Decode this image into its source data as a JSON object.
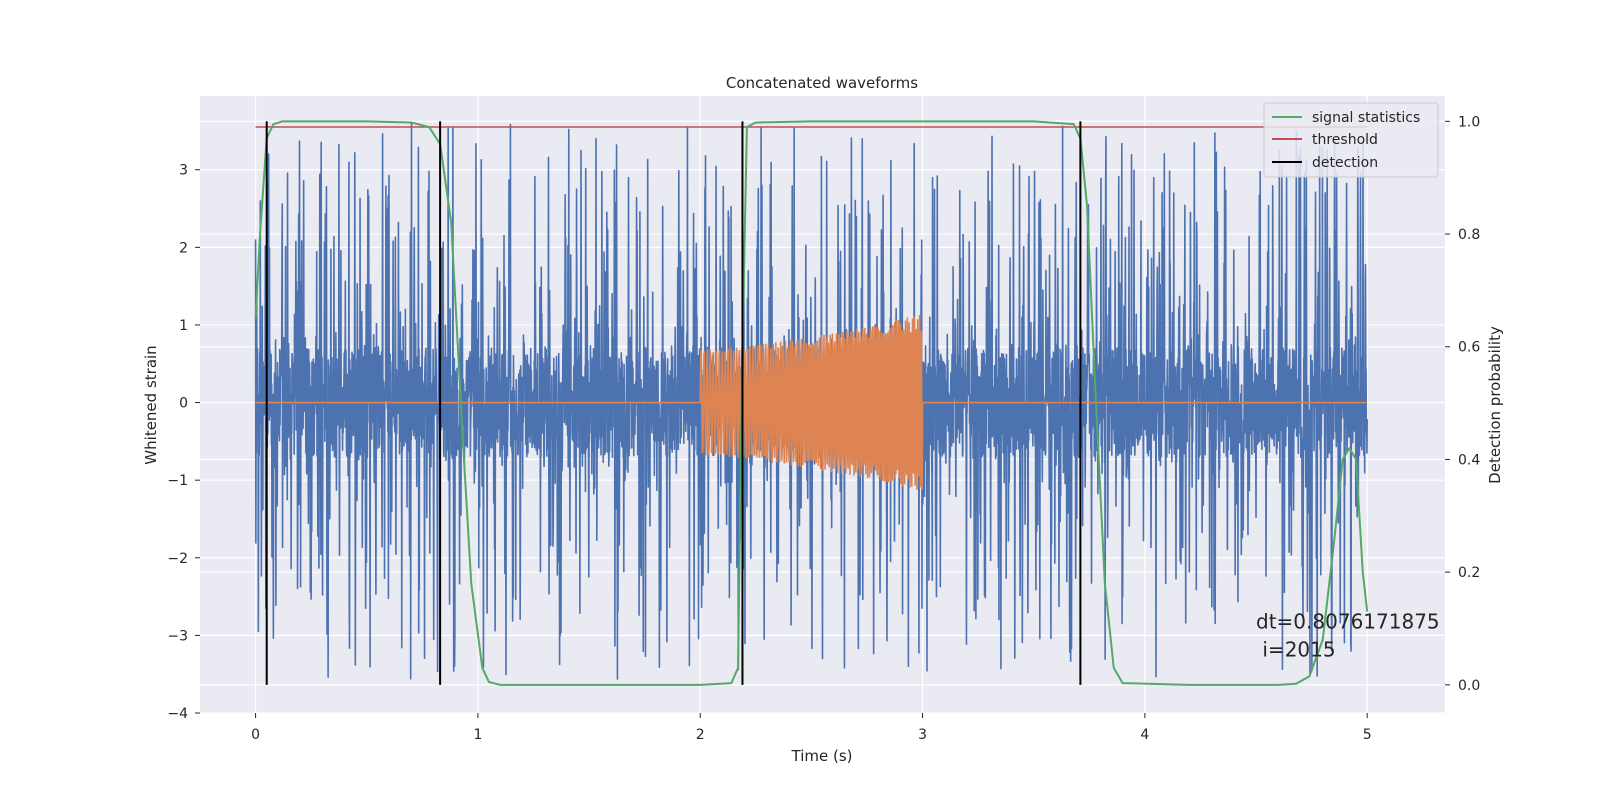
{
  "chart_data": {
    "type": "line",
    "title": "Concatenated waveforms",
    "xlabel": "Time (s)",
    "ylabel": "Whitened strain",
    "y2label": "Detection probability",
    "xlim": [
      -0.25,
      5.35
    ],
    "ylim": [
      -4.0,
      3.95
    ],
    "y2lim": [
      -0.05,
      1.045
    ],
    "x_ticks": [
      0,
      1,
      2,
      3,
      4,
      5
    ],
    "y_ticks": [
      -4,
      -3,
      -2,
      -1,
      0,
      1,
      2,
      3
    ],
    "y2_ticks": [
      0.0,
      0.2,
      0.4,
      0.6,
      0.8,
      1.0
    ],
    "x_tick_labels": [
      "0",
      "1",
      "2",
      "3",
      "4",
      "5"
    ],
    "y_tick_labels": [
      "−4",
      "−3",
      "−2",
      "−1",
      "0",
      "1",
      "2",
      "3"
    ],
    "y2_tick_labels": [
      "0.0",
      "0.2",
      "0.4",
      "0.6",
      "0.8",
      "1.0"
    ],
    "grid": true,
    "legend_position": "top-right",
    "colors": {
      "background": "#eaeaf2",
      "grid": "#ffffff",
      "strain": "#4c72b0",
      "injection": "#dd8452",
      "statistic": "#55a868",
      "threshold": "#c44e52",
      "detection": "#000000"
    },
    "series": [
      {
        "name": "whitened strain",
        "axis": "left",
        "note": "noisy whitened strain, band about ±0.7 with spikes to about ±3.6",
        "x_range": [
          0.0,
          5.0
        ],
        "band": 0.7,
        "peak": 3.6
      },
      {
        "name": "injected waveform",
        "axis": "left",
        "x": [
          0.0,
          2.0,
          2.2,
          2.5,
          2.8,
          3.0,
          3.0,
          5.0
        ],
        "envelope": [
          0.0,
          0.68,
          0.72,
          0.85,
          1.0,
          1.15,
          0.0,
          0.0
        ]
      },
      {
        "name": "signal statistics",
        "axis": "right",
        "x": [
          0.0,
          0.02,
          0.05,
          0.08,
          0.12,
          0.2,
          0.5,
          0.7,
          0.78,
          0.83,
          0.88,
          0.93,
          0.97,
          1.02,
          1.05,
          1.1,
          1.5,
          2.0,
          2.14,
          2.17,
          2.19,
          2.21,
          2.25,
          2.5,
          3.0,
          3.5,
          3.68,
          3.71,
          3.74,
          3.78,
          3.82,
          3.86,
          3.9,
          4.2,
          4.5,
          4.6,
          4.68,
          4.74,
          4.8,
          4.85,
          4.89,
          4.92,
          4.95,
          4.98,
          5.0
        ],
        "y": [
          0.65,
          0.8,
          0.97,
          0.995,
          1.0,
          1.0,
          1.0,
          0.998,
          0.99,
          0.96,
          0.82,
          0.45,
          0.18,
          0.03,
          0.005,
          0.0,
          0.0,
          0.0,
          0.003,
          0.03,
          0.6,
          0.99,
          0.998,
          1.0,
          1.0,
          1.0,
          0.995,
          0.97,
          0.85,
          0.5,
          0.18,
          0.03,
          0.003,
          0.0,
          0.0,
          0.0,
          0.002,
          0.015,
          0.08,
          0.25,
          0.4,
          0.42,
          0.4,
          0.2,
          0.13
        ]
      },
      {
        "name": "threshold",
        "axis": "right",
        "x": [
          0.0,
          5.0
        ],
        "y": [
          0.99,
          0.99
        ]
      }
    ],
    "detection_times": [
      0.05,
      0.83,
      2.19,
      3.71
    ],
    "detection_label": "detection",
    "detection_y_range": [
      0.0,
      1.0
    ],
    "legend": [
      "signal statistics",
      "threshold",
      "detection"
    ],
    "annotation": {
      "line1": "dt=0.8076171875",
      "line2": " i=2015",
      "x": 4.5,
      "y": 0.1
    }
  }
}
